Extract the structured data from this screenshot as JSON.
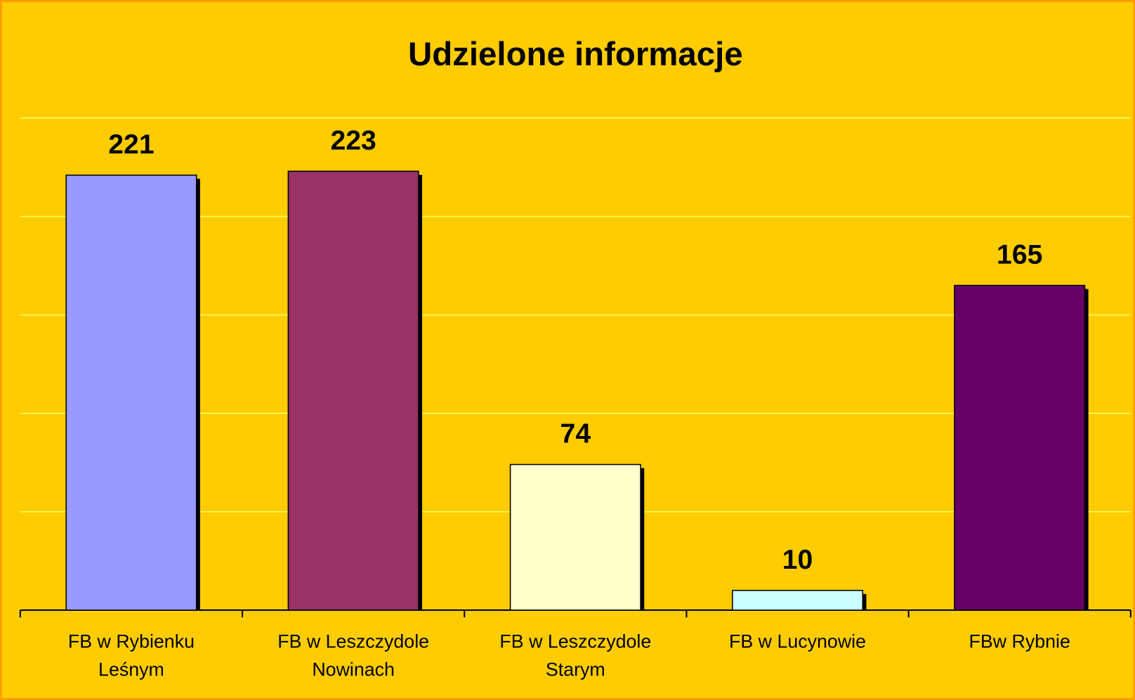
{
  "chart_data": {
    "type": "bar",
    "title": "Udzielone informacje",
    "categories": [
      "FB w Rybienku Leśnym",
      "FB w Leszczydole Nowinach",
      "FB w Leszczydole Starym",
      "FB w Lucynowie",
      "FBw Rybnie"
    ],
    "values": [
      221,
      223,
      74,
      10,
      165
    ],
    "colors": [
      "#9999ff",
      "#993366",
      "#ffffcc",
      "#ccffff",
      "#660066"
    ],
    "ylim": [
      0,
      250
    ],
    "yticks": [
      0,
      50,
      100,
      150,
      200,
      250
    ],
    "grid": true
  }
}
